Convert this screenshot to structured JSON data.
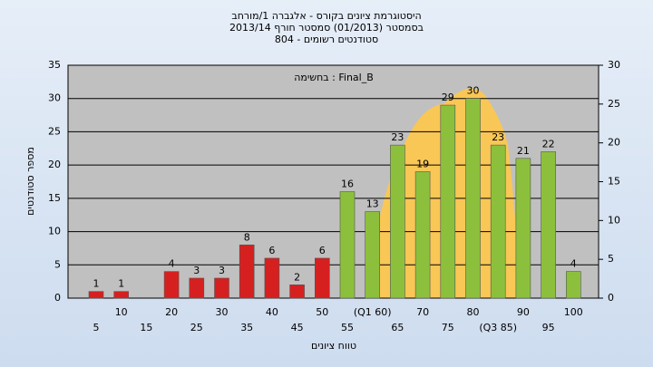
{
  "chart_data": {
    "type": "bar",
    "title": [
      "היסטוגרמת ציונים בקורס - אלגברה 1/מורחב",
      "בסמסטר (01/2013) סמסטר חורף 2013/14",
      "סטודנטים רשומים - 804"
    ],
    "annotation": "בחשימה : Final_B",
    "x_label": "טווח ציונים",
    "y_label": "מספר סטודנטים",
    "categories": [
      "5",
      "10",
      "15",
      "20",
      "25",
      "30",
      "35",
      "40",
      "45",
      "50",
      "55",
      "(Q1 60)",
      "65",
      "70",
      "75",
      "80",
      "(Q3 85)",
      "90",
      "95",
      "100"
    ],
    "values": [
      1,
      1,
      0,
      4,
      3,
      3,
      8,
      6,
      2,
      6,
      16,
      13,
      23,
      19,
      29,
      30,
      23,
      21,
      22,
      4
    ],
    "colors": [
      "#d62020",
      "#d62020",
      "#d62020",
      "#d62020",
      "#d62020",
      "#d62020",
      "#d62020",
      "#d62020",
      "#d62020",
      "#d62020",
      "#8cc03c",
      "#8cc03c",
      "#8cc03c",
      "#8cc03c",
      "#8cc03c",
      "#8cc03c",
      "#8cc03c",
      "#8cc03c",
      "#8cc03c",
      "#8cc03c"
    ],
    "ylim": [
      0,
      35
    ],
    "yticks": [
      0,
      5,
      10,
      15,
      20,
      25,
      30,
      35
    ],
    "y2lim": [
      0,
      30
    ],
    "y2ticks": [
      0,
      5,
      10,
      15,
      20,
      25,
      30
    ],
    "grid": true
  }
}
